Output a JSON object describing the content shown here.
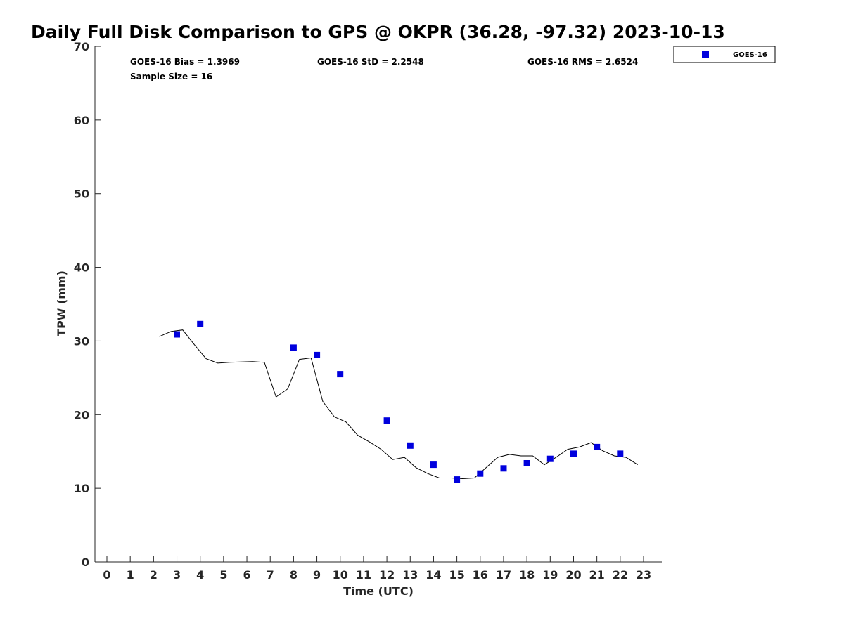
{
  "chart_data": {
    "type": "scatter",
    "title": "Daily Full Disk Comparison to GPS @ OKPR (36.28, -97.32) 2023-10-13",
    "xlabel": "Time (UTC)",
    "ylabel": "TPW (mm)",
    "xlim": [
      -0.5,
      23.8
    ],
    "ylim": [
      0,
      70
    ],
    "xticks": [
      0,
      1,
      2,
      3,
      4,
      5,
      6,
      7,
      8,
      9,
      10,
      11,
      12,
      13,
      14,
      15,
      16,
      17,
      18,
      19,
      20,
      21,
      22,
      23
    ],
    "yticks": [
      0,
      10,
      20,
      30,
      40,
      50,
      60,
      70
    ],
    "grid": false,
    "legend_position": "top-right, outside plot",
    "stats": {
      "bias": "GOES-16 Bias = 1.3969",
      "std": "GOES-16 StD = 2.2548",
      "rms": "GOES-16 RMS = 2.6524",
      "sample_size": "Sample Size = 16"
    },
    "series": [
      {
        "name": "GOES-16",
        "kind": "scatter",
        "marker": "square",
        "color": "#0000dd",
        "points": [
          [
            3,
            30.9
          ],
          [
            4,
            32.3
          ],
          [
            8,
            29.1
          ],
          [
            9,
            28.1
          ],
          [
            10,
            25.5
          ],
          [
            12,
            19.2
          ],
          [
            13,
            15.8
          ],
          [
            14,
            13.2
          ],
          [
            15,
            11.2
          ],
          [
            16,
            12.0
          ],
          [
            17,
            12.7
          ],
          [
            18,
            13.4
          ],
          [
            19,
            14.0
          ],
          [
            20,
            14.7
          ],
          [
            21,
            15.6
          ],
          [
            22,
            14.7
          ]
        ]
      },
      {
        "kind": "line",
        "color": "#000000",
        "points": [
          [
            2.25,
            30.6
          ],
          [
            2.75,
            31.3
          ],
          [
            3.25,
            31.5
          ],
          [
            3.75,
            29.5
          ],
          [
            4.25,
            27.6
          ],
          [
            4.75,
            27.0
          ],
          [
            5.25,
            27.1
          ],
          [
            6.25,
            27.2
          ],
          [
            6.75,
            27.1
          ],
          [
            7.25,
            22.4
          ],
          [
            7.75,
            23.5
          ],
          [
            8.25,
            27.5
          ],
          [
            8.75,
            27.7
          ],
          [
            9.25,
            21.8
          ],
          [
            9.75,
            19.7
          ],
          [
            10.25,
            19.0
          ],
          [
            10.75,
            17.2
          ],
          [
            11.25,
            16.3
          ],
          [
            11.75,
            15.3
          ],
          [
            12.25,
            13.9
          ],
          [
            12.75,
            14.2
          ],
          [
            13.25,
            12.8
          ],
          [
            13.75,
            12.0
          ],
          [
            14.25,
            11.4
          ],
          [
            14.75,
            11.4
          ],
          [
            15.25,
            11.3
          ],
          [
            15.75,
            11.4
          ],
          [
            16.25,
            12.8
          ],
          [
            16.75,
            14.2
          ],
          [
            17.25,
            14.6
          ],
          [
            17.75,
            14.4
          ],
          [
            18.25,
            14.4
          ],
          [
            18.75,
            13.2
          ],
          [
            19.25,
            14.2
          ],
          [
            19.75,
            15.3
          ],
          [
            20.25,
            15.6
          ],
          [
            20.75,
            16.2
          ],
          [
            21.25,
            15.1
          ],
          [
            21.75,
            14.4
          ],
          [
            22.25,
            14.2
          ],
          [
            22.75,
            13.2
          ]
        ]
      }
    ]
  }
}
